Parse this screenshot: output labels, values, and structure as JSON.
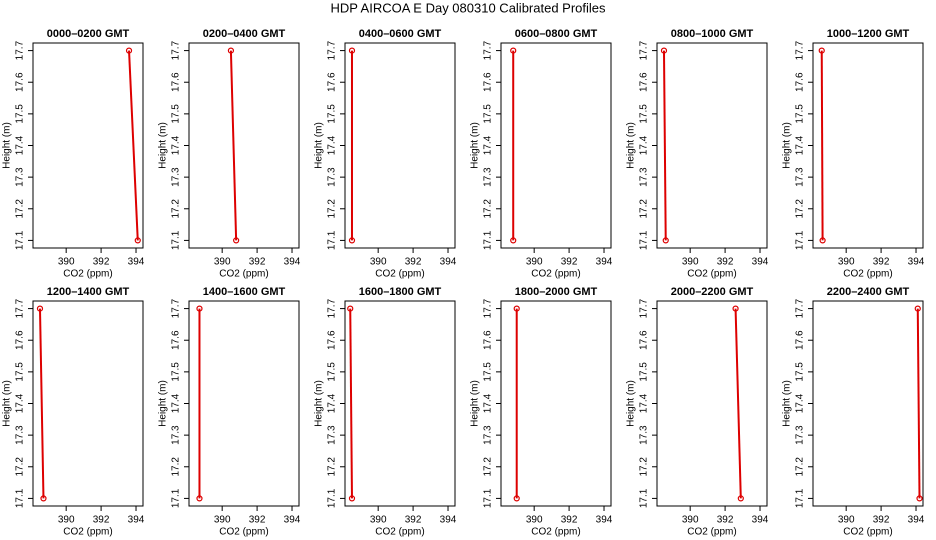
{
  "title": "HDP AIRCOA E  Day 080310  Calibrated Profiles",
  "chart_data": [
    {
      "type": "line",
      "title": "0000–0200 GMT",
      "x_label": "CO2 (ppm)",
      "y_label": "Height (m)",
      "x": [
        393.6,
        394.1
      ],
      "y": [
        17.7,
        17.1
      ],
      "color": "#dd0000",
      "xlim": [
        388.1,
        394.4
      ],
      "ylim": [
        17.076,
        17.724
      ],
      "xticks": [
        390,
        392,
        394
      ],
      "yticks": [
        17.1,
        17.2,
        17.3,
        17.4,
        17.5,
        17.6,
        17.7
      ]
    },
    {
      "type": "line",
      "title": "0200–0400 GMT",
      "x_label": "CO2 (ppm)",
      "y_label": "Height (m)",
      "x": [
        390.5,
        390.8
      ],
      "y": [
        17.7,
        17.1
      ],
      "color": "#dd0000",
      "xlim": [
        388.1,
        394.4
      ],
      "ylim": [
        17.076,
        17.724
      ],
      "xticks": [
        390,
        392,
        394
      ],
      "yticks": [
        17.1,
        17.2,
        17.3,
        17.4,
        17.5,
        17.6,
        17.7
      ]
    },
    {
      "type": "line",
      "title": "0400–0600 GMT",
      "x_label": "CO2 (ppm)",
      "y_label": "Height (m)",
      "x": [
        388.5,
        388.5
      ],
      "y": [
        17.7,
        17.1
      ],
      "color": "#dd0000",
      "xlim": [
        388.1,
        394.4
      ],
      "ylim": [
        17.076,
        17.724
      ],
      "xticks": [
        390,
        392,
        394
      ],
      "yticks": [
        17.1,
        17.2,
        17.3,
        17.4,
        17.5,
        17.6,
        17.7
      ]
    },
    {
      "type": "line",
      "title": "0600–0800 GMT",
      "x_label": "CO2 (ppm)",
      "y_label": "Height (m)",
      "x": [
        388.8,
        388.8
      ],
      "y": [
        17.7,
        17.1
      ],
      "color": "#dd0000",
      "xlim": [
        388.1,
        394.4
      ],
      "ylim": [
        17.076,
        17.724
      ],
      "xticks": [
        390,
        392,
        394
      ],
      "yticks": [
        17.1,
        17.2,
        17.3,
        17.4,
        17.5,
        17.6,
        17.7
      ]
    },
    {
      "type": "line",
      "title": "0800–1000 GMT",
      "x_label": "CO2 (ppm)",
      "y_label": "Height (m)",
      "x": [
        388.5,
        388.6
      ],
      "y": [
        17.7,
        17.1
      ],
      "color": "#dd0000",
      "xlim": [
        388.1,
        394.4
      ],
      "ylim": [
        17.076,
        17.724
      ],
      "xticks": [
        390,
        392,
        394
      ],
      "yticks": [
        17.1,
        17.2,
        17.3,
        17.4,
        17.5,
        17.6,
        17.7
      ]
    },
    {
      "type": "line",
      "title": "1000–1200 GMT",
      "x_label": "CO2 (ppm)",
      "y_label": "Height (m)",
      "x": [
        388.6,
        388.65
      ],
      "y": [
        17.7,
        17.1
      ],
      "color": "#dd0000",
      "xlim": [
        388.1,
        394.4
      ],
      "ylim": [
        17.076,
        17.724
      ],
      "xticks": [
        390,
        392,
        394
      ],
      "yticks": [
        17.1,
        17.2,
        17.3,
        17.4,
        17.5,
        17.6,
        17.7
      ]
    },
    {
      "type": "line",
      "title": "1200–1400 GMT",
      "x_label": "CO2 (ppm)",
      "y_label": "Height (m)",
      "x": [
        388.5,
        388.7
      ],
      "y": [
        17.7,
        17.1
      ],
      "color": "#dd0000",
      "xlim": [
        388.1,
        394.4
      ],
      "ylim": [
        17.076,
        17.724
      ],
      "xticks": [
        390,
        392,
        394
      ],
      "yticks": [
        17.1,
        17.2,
        17.3,
        17.4,
        17.5,
        17.6,
        17.7
      ]
    },
    {
      "type": "line",
      "title": "1400–1600 GMT",
      "x_label": "CO2 (ppm)",
      "y_label": "Height (m)",
      "x": [
        388.7,
        388.7
      ],
      "y": [
        17.7,
        17.1
      ],
      "color": "#dd0000",
      "xlim": [
        388.1,
        394.4
      ],
      "ylim": [
        17.076,
        17.724
      ],
      "xticks": [
        390,
        392,
        394
      ],
      "yticks": [
        17.1,
        17.2,
        17.3,
        17.4,
        17.5,
        17.6,
        17.7
      ]
    },
    {
      "type": "line",
      "title": "1600–1800 GMT",
      "x_label": "CO2 (ppm)",
      "y_label": "Height (m)",
      "x": [
        388.4,
        388.5
      ],
      "y": [
        17.7,
        17.1
      ],
      "color": "#dd0000",
      "xlim": [
        388.1,
        394.4
      ],
      "ylim": [
        17.076,
        17.724
      ],
      "xticks": [
        390,
        392,
        394
      ],
      "yticks": [
        17.1,
        17.2,
        17.3,
        17.4,
        17.5,
        17.6,
        17.7
      ]
    },
    {
      "type": "line",
      "title": "1800–2000 GMT",
      "x_label": "CO2 (ppm)",
      "y_label": "Height (m)",
      "x": [
        389.0,
        389.0
      ],
      "y": [
        17.7,
        17.1
      ],
      "color": "#dd0000",
      "xlim": [
        388.1,
        394.4
      ],
      "ylim": [
        17.076,
        17.724
      ],
      "xticks": [
        390,
        392,
        394
      ],
      "yticks": [
        17.1,
        17.2,
        17.3,
        17.4,
        17.5,
        17.6,
        17.7
      ]
    },
    {
      "type": "line",
      "title": "2000–2200 GMT",
      "x_label": "CO2 (ppm)",
      "y_label": "Height (m)",
      "x": [
        392.6,
        392.9
      ],
      "y": [
        17.7,
        17.1
      ],
      "color": "#dd0000",
      "xlim": [
        388.1,
        394.4
      ],
      "ylim": [
        17.076,
        17.724
      ],
      "xticks": [
        390,
        392,
        394
      ],
      "yticks": [
        17.1,
        17.2,
        17.3,
        17.4,
        17.5,
        17.6,
        17.7
      ]
    },
    {
      "type": "line",
      "title": "2200–2400 GMT",
      "x_label": "CO2 (ppm)",
      "y_label": "Height (m)",
      "x": [
        394.1,
        394.2
      ],
      "y": [
        17.7,
        17.1
      ],
      "color": "#dd0000",
      "xlim": [
        388.1,
        394.4
      ],
      "ylim": [
        17.076,
        17.724
      ],
      "xticks": [
        390,
        392,
        394
      ],
      "yticks": [
        17.1,
        17.2,
        17.3,
        17.4,
        17.5,
        17.6,
        17.7
      ]
    }
  ]
}
